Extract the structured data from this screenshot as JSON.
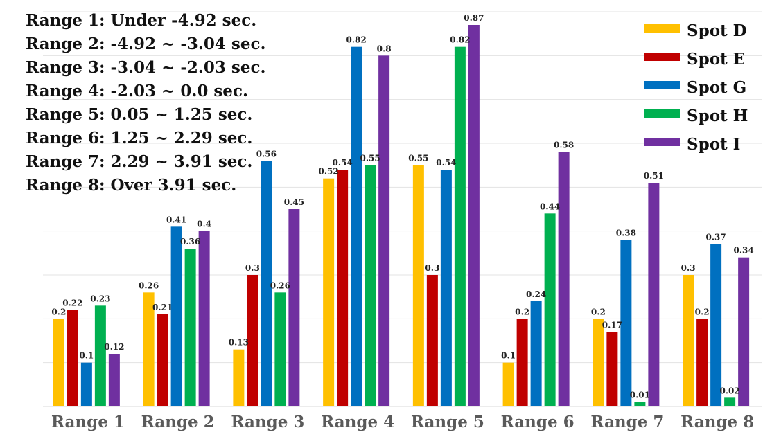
{
  "chart_data": {
    "type": "bar",
    "title": "",
    "xlabel": "",
    "ylabel": "",
    "ylim": [
      0,
      0.9
    ],
    "grid": true,
    "legend_position": "top-right",
    "categories": [
      "Range 1",
      "Range 2",
      "Range 3",
      "Range 4",
      "Range 5",
      "Range 6",
      "Range 7",
      "Range 8"
    ],
    "series": [
      {
        "name": "Spot D",
        "color": "#FFC000",
        "values": [
          0.2,
          0.26,
          0.13,
          0.52,
          0.55,
          0.1,
          0.2,
          0.3
        ]
      },
      {
        "name": "Spot E",
        "color": "#C00000",
        "values": [
          0.22,
          0.21,
          0.3,
          0.54,
          0.3,
          0.2,
          0.17,
          0.2
        ]
      },
      {
        "name": "Spot G",
        "color": "#0070C0",
        "values": [
          0.1,
          0.41,
          0.56,
          0.82,
          0.54,
          0.24,
          0.38,
          0.37
        ]
      },
      {
        "name": "Spot H",
        "color": "#00B050",
        "values": [
          0.23,
          0.36,
          0.26,
          0.55,
          0.82,
          0.44,
          0.01,
          0.02
        ]
      },
      {
        "name": "Spot I",
        "color": "#7030A0",
        "values": [
          0.12,
          0.4,
          0.45,
          0.8,
          0.87,
          0.58,
          0.51,
          0.34
        ]
      }
    ],
    "annotations": [
      "Range 1: Under -4.92 sec.",
      "Range 2: -4.92 ~ -3.04 sec.",
      "Range 3: -3.04 ~ -2.03 sec.",
      "Range 4: -2.03 ~ 0.0 sec.",
      "Range 5: 0.05 ~ 1.25 sec.",
      "Range 6: 1.25 ~ 2.29 sec.",
      "Range 7: 2.29 ~ 3.91 sec.",
      "Range 8: Over 3.91 sec."
    ]
  }
}
